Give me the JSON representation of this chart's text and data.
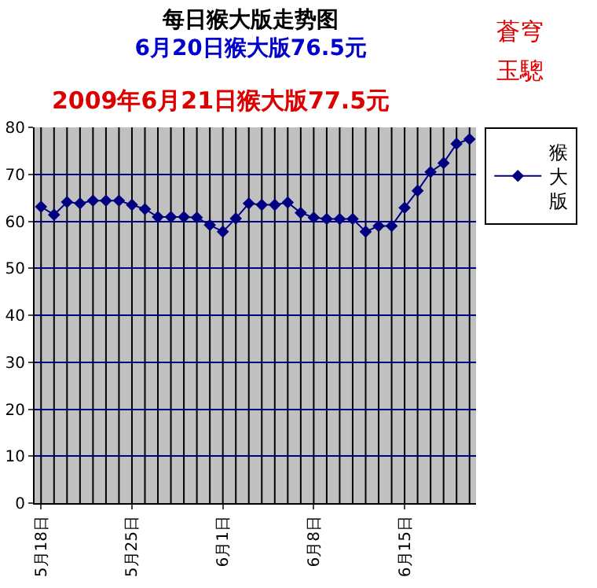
{
  "chart_data": {
    "type": "line",
    "title": "每日猴大版走势图",
    "subtitle": "6月20日猴大版76.5元",
    "annotations": [
      "2009年6月21日猴大版77.5元",
      "蒼穹",
      "玉驄"
    ],
    "categories": [
      "5月18日",
      null,
      null,
      null,
      null,
      null,
      null,
      "5月25日",
      null,
      null,
      null,
      null,
      null,
      null,
      "6月1日",
      null,
      null,
      null,
      null,
      null,
      null,
      "6月8日",
      null,
      null,
      null,
      null,
      null,
      null,
      "6月15日",
      null,
      null,
      null,
      null,
      null
    ],
    "series": [
      {
        "name": "猴大版",
        "color": "#000080",
        "values": [
          63.1,
          61.4,
          64.1,
          63.8,
          64.4,
          64.4,
          64.4,
          63.5,
          62.6,
          60.9,
          60.9,
          60.9,
          60.8,
          59.2,
          57.8,
          60.6,
          63.8,
          63.5,
          63.5,
          64,
          61.8,
          60.8,
          60.5,
          60.5,
          60.5,
          57.8,
          59,
          59,
          62.9,
          66.5,
          70.5,
          72.4,
          76.5,
          77.5
        ]
      }
    ],
    "ylim": [
      0,
      80
    ],
    "yticks": [
      0,
      10,
      20,
      30,
      40,
      50,
      60,
      70,
      80
    ],
    "grid": true,
    "legend": "top right",
    "marker": "diamond",
    "line_style": "solid"
  }
}
